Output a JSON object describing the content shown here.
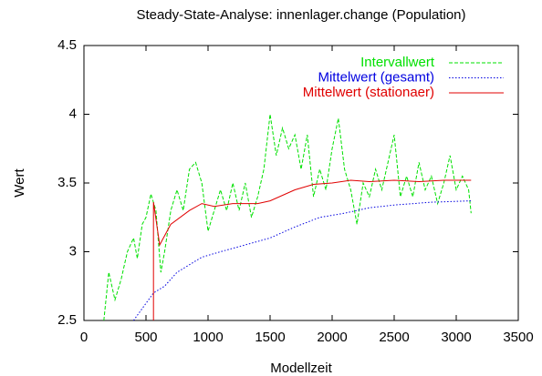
{
  "chart_data": {
    "type": "line",
    "title": "Steady-State-Analyse: innenlager.change (Population)",
    "x_label": "Modellzeit",
    "y_label": "Wert",
    "xlim": [
      0,
      3500
    ],
    "xticks": [
      0,
      500,
      1000,
      1500,
      2000,
      2500,
      3000,
      3500
    ],
    "ylim": [
      2.5,
      4.5
    ],
    "yticks": [
      2.5,
      3,
      3.5,
      4,
      4.5
    ],
    "legend": "top-right",
    "series": [
      {
        "name": "Intervallwert",
        "color": "#00e000",
        "style": "dashed",
        "x": [
          160,
          200,
          250,
          300,
          350,
          400,
          430,
          470,
          500,
          540,
          580,
          620,
          650,
          700,
          750,
          800,
          850,
          900,
          950,
          1000,
          1050,
          1100,
          1150,
          1200,
          1250,
          1300,
          1350,
          1400,
          1450,
          1500,
          1550,
          1600,
          1650,
          1700,
          1750,
          1800,
          1850,
          1900,
          1950,
          2000,
          2050,
          2100,
          2150,
          2200,
          2250,
          2300,
          2350,
          2400,
          2450,
          2500,
          2550,
          2600,
          2650,
          2700,
          2750,
          2800,
          2850,
          2900,
          2950,
          3000,
          3050,
          3100,
          3120
        ],
        "values": [
          2.5,
          2.85,
          2.65,
          2.8,
          3.0,
          3.1,
          2.95,
          3.2,
          3.25,
          3.42,
          3.3,
          2.85,
          3.0,
          3.3,
          3.45,
          3.3,
          3.6,
          3.65,
          3.5,
          3.15,
          3.3,
          3.45,
          3.3,
          3.5,
          3.3,
          3.5,
          3.25,
          3.4,
          3.6,
          4.0,
          3.7,
          3.9,
          3.75,
          3.85,
          3.6,
          3.85,
          3.4,
          3.6,
          3.45,
          3.75,
          3.97,
          3.6,
          3.45,
          3.2,
          3.5,
          3.4,
          3.6,
          3.45,
          3.65,
          3.85,
          3.4,
          3.55,
          3.4,
          3.65,
          3.45,
          3.55,
          3.35,
          3.5,
          3.7,
          3.45,
          3.55,
          3.45,
          3.28
        ]
      },
      {
        "name": "Mittelwert (gesamt)",
        "color": "#0000e0",
        "style": "dotted",
        "x": [
          400,
          480,
          560,
          650,
          750,
          950,
          1100,
          1300,
          1500,
          1700,
          1900,
          2100,
          2300,
          2500,
          2800,
          3120
        ],
        "values": [
          2.5,
          2.6,
          2.7,
          2.75,
          2.85,
          2.96,
          3.0,
          3.05,
          3.1,
          3.18,
          3.25,
          3.28,
          3.32,
          3.34,
          3.36,
          3.37
        ]
      },
      {
        "name": "Mittelwert (stationaer)",
        "color": "#e00000",
        "style": "solid",
        "x": [
          560,
          560,
          610,
          700,
          850,
          950,
          1050,
          1200,
          1400,
          1500,
          1700,
          1850,
          2000,
          2150,
          2300,
          2500,
          2700,
          2900,
          3120
        ],
        "values": [
          2.5,
          3.36,
          3.05,
          3.2,
          3.3,
          3.35,
          3.33,
          3.35,
          3.35,
          3.37,
          3.45,
          3.49,
          3.5,
          3.52,
          3.51,
          3.52,
          3.51,
          3.52,
          3.52
        ]
      }
    ]
  }
}
